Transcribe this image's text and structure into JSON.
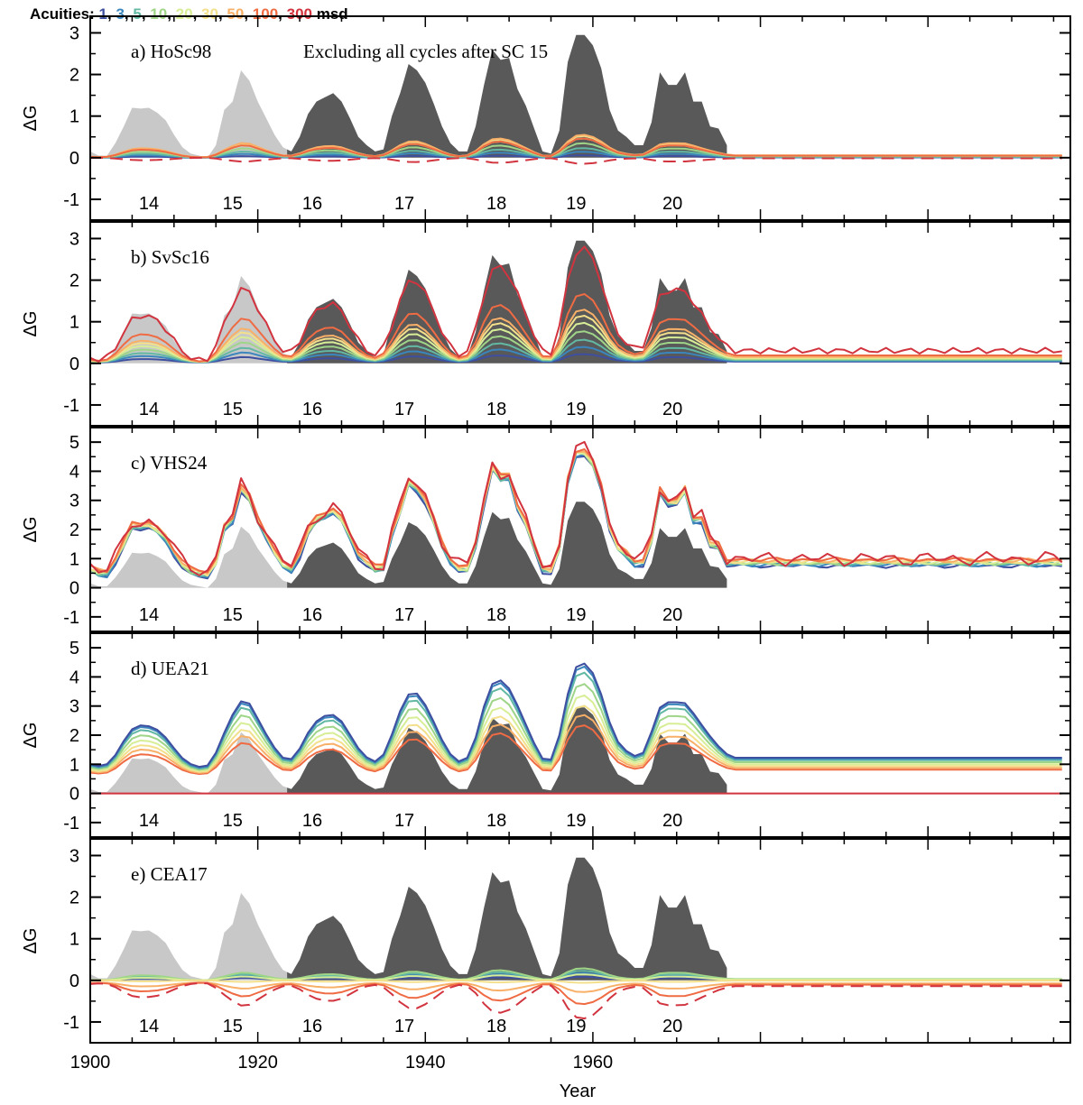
{
  "legend": {
    "prefix": "Acuities:",
    "suffix": "msd",
    "items": [
      {
        "label": "1",
        "color": "#3f4fa0"
      },
      {
        "label": "3",
        "color": "#3a86bd"
      },
      {
        "label": "5",
        "color": "#62b8a3"
      },
      {
        "label": "10",
        "color": "#9fd588"
      },
      {
        "label": "20",
        "color": "#d7ee97"
      },
      {
        "label": "30",
        "color": "#f3e08c"
      },
      {
        "label": "50",
        "color": "#f8b069"
      },
      {
        "label": "100",
        "color": "#ef6b43"
      },
      {
        "label": "300",
        "color": "#d2343f"
      }
    ]
  },
  "chart_data": {
    "type": "area",
    "xlabel": "Year",
    "ylabel": "ΔG",
    "xlim": [
      1900,
      2017
    ],
    "xticks": [
      1900,
      1920,
      1940,
      1960
    ],
    "cycle_labels": [
      {
        "label": "14",
        "year": 1907
      },
      {
        "label": "15",
        "year": 1917
      },
      {
        "label": "16",
        "year": 1926.5
      },
      {
        "label": "17",
        "year": 1937.5
      },
      {
        "label": "18",
        "year": 1948.5
      },
      {
        "label": "19",
        "year": 1958
      },
      {
        "label": "20",
        "year": 1969.5
      }
    ],
    "shading": {
      "light_until_year": 1923.5,
      "light_color": "#c8c8c8",
      "dark_color": "#595959"
    },
    "reference_years": [
      1900,
      1901,
      1902,
      1903,
      1904,
      1905,
      1906,
      1907,
      1908,
      1909,
      1910,
      1911,
      1912,
      1913,
      1914,
      1915,
      1916,
      1917,
      1918,
      1919,
      1920,
      1921,
      1922,
      1923,
      1924,
      1925,
      1926,
      1927,
      1928,
      1929,
      1930,
      1931,
      1932,
      1933,
      1934,
      1935,
      1936,
      1937,
      1938,
      1939,
      1940,
      1941,
      1942,
      1943,
      1944,
      1945,
      1946,
      1947,
      1948,
      1949,
      1950,
      1951,
      1952,
      1953,
      1954,
      1955,
      1956,
      1957,
      1958,
      1959,
      1960,
      1961,
      1962,
      1963,
      1964,
      1965,
      1966,
      1967,
      1968,
      1969,
      1970,
      1971,
      1972,
      1973,
      1974,
      1975,
      1976
    ],
    "reference_values": [
      0.15,
      0.05,
      0.05,
      0.35,
      0.75,
      1.2,
      1.18,
      1.2,
      1.08,
      0.9,
      0.55,
      0.25,
      0.1,
      0.05,
      0.0,
      0.3,
      1.15,
      1.35,
      2.1,
      1.85,
      1.35,
      0.95,
      0.55,
      0.25,
      0.15,
      0.5,
      1.05,
      1.35,
      1.45,
      1.55,
      1.35,
      0.95,
      0.5,
      0.3,
      0.15,
      0.2,
      1.0,
      1.55,
      2.25,
      2.1,
      1.8,
      1.3,
      0.75,
      0.35,
      0.15,
      0.15,
      0.75,
      1.75,
      2.6,
      2.35,
      2.4,
      1.65,
      1.25,
      0.7,
      0.15,
      0.1,
      0.65,
      2.3,
      2.95,
      2.95,
      2.7,
      2.15,
      1.15,
      0.65,
      0.5,
      0.3,
      0.3,
      0.85,
      2.05,
      1.75,
      1.75,
      2.05,
      1.35,
      1.35,
      0.75,
      0.7,
      0.3
    ],
    "panels": [
      {
        "id": "a",
        "title": "a) HoSc98",
        "note": "Excluding all cycles after SC 15",
        "ylim": [
          -1.5,
          3.4
        ],
        "yticks": [
          -1,
          0,
          1,
          2,
          3
        ],
        "mode": "hosc"
      },
      {
        "id": "b",
        "title": "b) SvSc16",
        "ylim": [
          -1.5,
          3.4
        ],
        "yticks": [
          -1,
          0,
          1,
          2,
          3
        ],
        "mode": "svsc"
      },
      {
        "id": "c",
        "title": "c) VHS24",
        "ylim": [
          -1.5,
          5.5
        ],
        "yticks": [
          -1,
          0,
          1,
          2,
          3,
          4,
          5
        ],
        "mode": "vhs"
      },
      {
        "id": "d",
        "title": "d) UEA21",
        "ylim": [
          -1.5,
          5.5
        ],
        "yticks": [
          -1,
          0,
          1,
          2,
          3,
          4,
          5
        ],
        "mode": "uea"
      },
      {
        "id": "e",
        "title": "e) CEA17",
        "ylim": [
          -1.5,
          3.4
        ],
        "yticks": [
          -1,
          0,
          1,
          2,
          3
        ],
        "mode": "cea"
      }
    ]
  }
}
